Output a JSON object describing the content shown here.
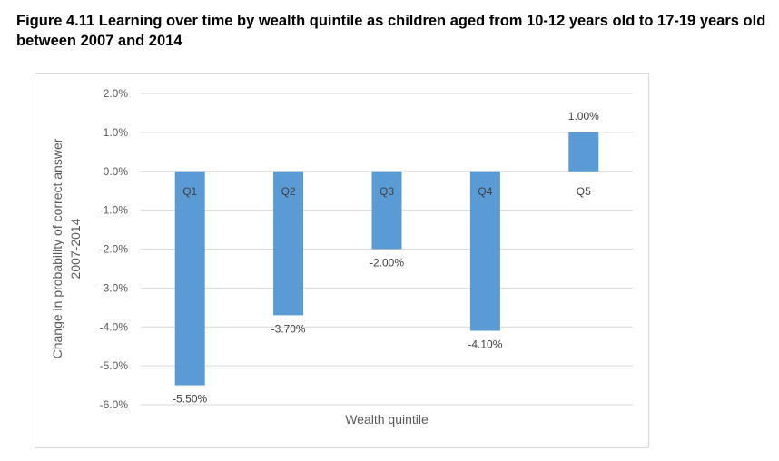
{
  "figure": {
    "title": "Figure 4.11 Learning over time by wealth quintile as children aged from 10-12 years old to 17-19 years old between 2007 and 2014"
  },
  "chart_data": {
    "type": "bar",
    "categories": [
      "Q1",
      "Q2",
      "Q3",
      "Q4",
      "Q5"
    ],
    "values": [
      -5.5,
      -3.7,
      -2.0,
      -4.1,
      1.0
    ],
    "data_labels": [
      "-5.50%",
      "-3.70%",
      "-2.00%",
      "-4.10%",
      "1.00%"
    ],
    "y_ticks": [
      "2.0%",
      "1.0%",
      "0.0%",
      "-1.0%",
      "-2.0%",
      "-3.0%",
      "-4.0%",
      "-5.0%",
      "-6.0%"
    ],
    "ylim": [
      -6,
      2
    ],
    "xlabel": "Wealth quintile",
    "ylabel_lines": [
      "Change in probability of correct answer",
      "2007-2014"
    ],
    "bar_color": "#5b9bd5",
    "grid": true,
    "category_labels_at_zero_line": true
  }
}
